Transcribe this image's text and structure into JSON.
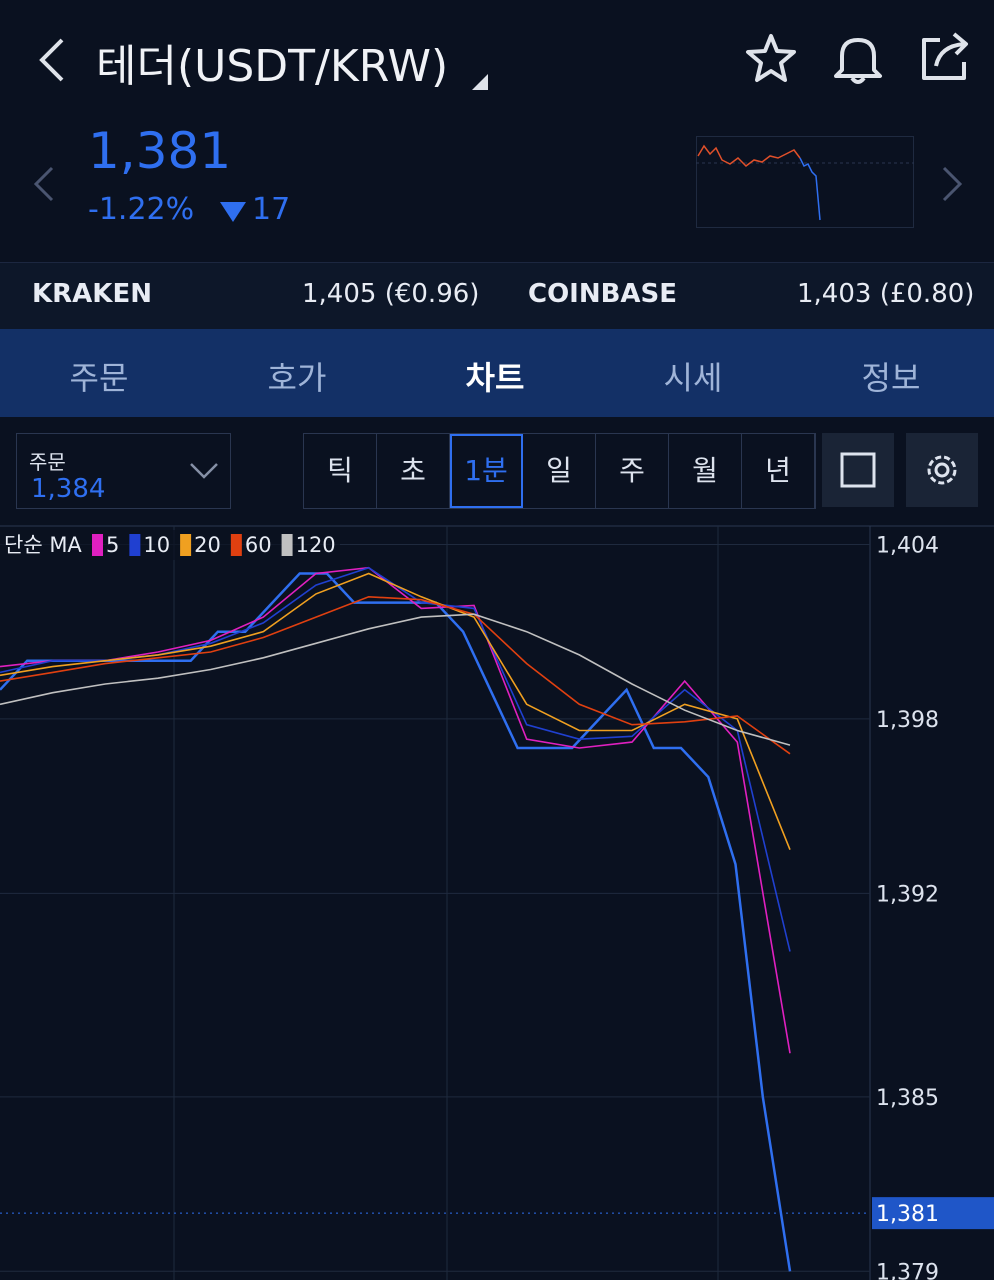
{
  "header": {
    "title": "테더(USDT/KRW)"
  },
  "ticker": {
    "price": "1,381",
    "change_percent": "-1.22%",
    "change": "17"
  },
  "exchanges": [
    {
      "name": "KRAKEN",
      "price": "1,405 (€0.96)"
    },
    {
      "name": "COINBASE",
      "price": "1,403 (£0.80)"
    }
  ],
  "tabs": [
    "주문",
    "호가",
    "차트",
    "시세",
    "정보"
  ],
  "order": {
    "label": "주문",
    "value": "1,384"
  },
  "intervals": [
    "틱",
    "초",
    "1분",
    "일",
    "주",
    "월",
    "년"
  ],
  "chart_data": {
    "type": "line",
    "legend_title": "단순 MA",
    "ylim": [
      1378.7,
      1404.6
    ],
    "yticks": [
      {
        "value": 1404,
        "label": "1,404"
      },
      {
        "value": 1398,
        "label": "1,398"
      },
      {
        "value": 1392,
        "label": "1,392"
      },
      {
        "value": 1385,
        "label": "1,385"
      },
      {
        "value": 1379,
        "label": "1,379"
      }
    ],
    "current": {
      "value": 1381,
      "label": "1,381"
    },
    "grid": true,
    "price": {
      "color": "#2f6ff0",
      "values": [
        1399,
        1400,
        1400,
        1400,
        1400,
        1400,
        1400,
        1400,
        1401,
        1401,
        1402,
        1403,
        1403,
        1402,
        1402,
        1402,
        1402,
        1401,
        1399,
        1397,
        1397,
        1397,
        1398,
        1399,
        1397,
        1397,
        1396,
        1393,
        1385,
        1379
      ]
    },
    "series": [
      {
        "name": "5",
        "color": "#e020c0",
        "values": [
          1399.8,
          1400.0,
          1400.0,
          1400.3,
          1400.7,
          1401.5,
          1403.0,
          1403.2,
          1401.8,
          1401.9,
          1397.3,
          1397.0,
          1397.2,
          1399.3,
          1397.2,
          1386.5
        ]
      },
      {
        "name": "10",
        "color": "#2040d0",
        "values": [
          1399.6,
          1400.0,
          1400.0,
          1400.2,
          1400.6,
          1401.3,
          1402.6,
          1403.2,
          1402.0,
          1401.8,
          1397.8,
          1397.3,
          1397.4,
          1399.0,
          1397.6,
          1390.0
        ]
      },
      {
        "name": "20",
        "color": "#f0a020",
        "values": [
          1399.5,
          1399.8,
          1400.0,
          1400.2,
          1400.5,
          1401.0,
          1402.3,
          1403.0,
          1402.2,
          1401.5,
          1398.5,
          1397.6,
          1397.6,
          1398.5,
          1398.0,
          1393.5
        ]
      },
      {
        "name": "60",
        "color": "#e04010",
        "values": [
          1399.3,
          1399.6,
          1399.9,
          1400.1,
          1400.3,
          1400.8,
          1401.5,
          1402.2,
          1402.1,
          1401.6,
          1399.9,
          1398.5,
          1397.8,
          1397.9,
          1398.1,
          1396.8
        ]
      },
      {
        "name": "120",
        "color": "#c0c0c0",
        "values": [
          1398.5,
          1398.9,
          1399.2,
          1399.4,
          1399.7,
          1400.1,
          1400.6,
          1401.1,
          1401.5,
          1401.6,
          1401.0,
          1400.2,
          1399.2,
          1398.3,
          1397.6,
          1397.1
        ]
      }
    ]
  }
}
